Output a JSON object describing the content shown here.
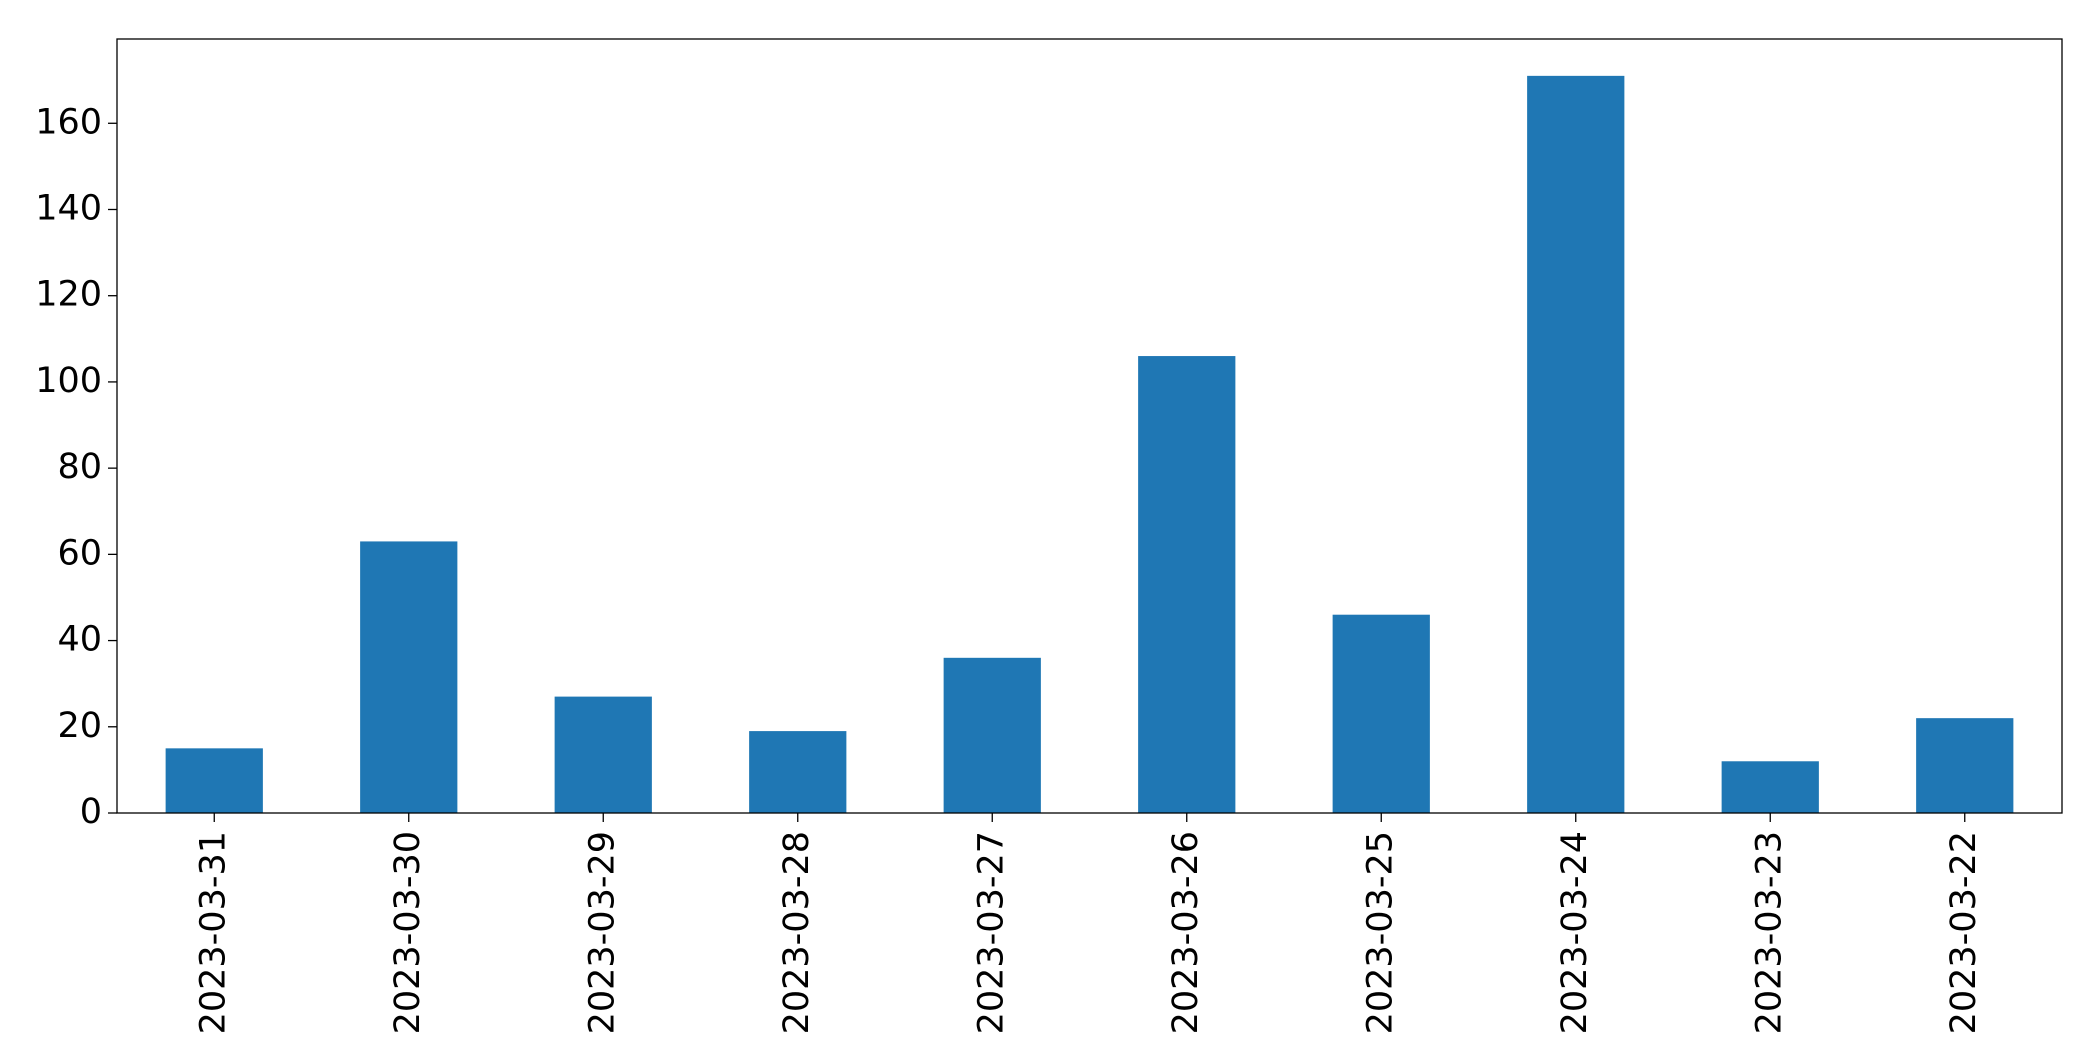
{
  "chart_data": {
    "type": "bar",
    "categories": [
      "2023-03-31",
      "2023-03-30",
      "2023-03-29",
      "2023-03-28",
      "2023-03-27",
      "2023-03-26",
      "2023-03-25",
      "2023-03-24",
      "2023-03-23",
      "2023-03-22"
    ],
    "values": [
      15,
      63,
      27,
      19,
      36,
      106,
      46,
      171,
      12,
      22
    ],
    "color": "#1f77b4",
    "ylim": [
      0,
      179.55
    ],
    "yticks": [
      0,
      20,
      40,
      60,
      80,
      100,
      120,
      140,
      160
    ],
    "grid": false
  }
}
